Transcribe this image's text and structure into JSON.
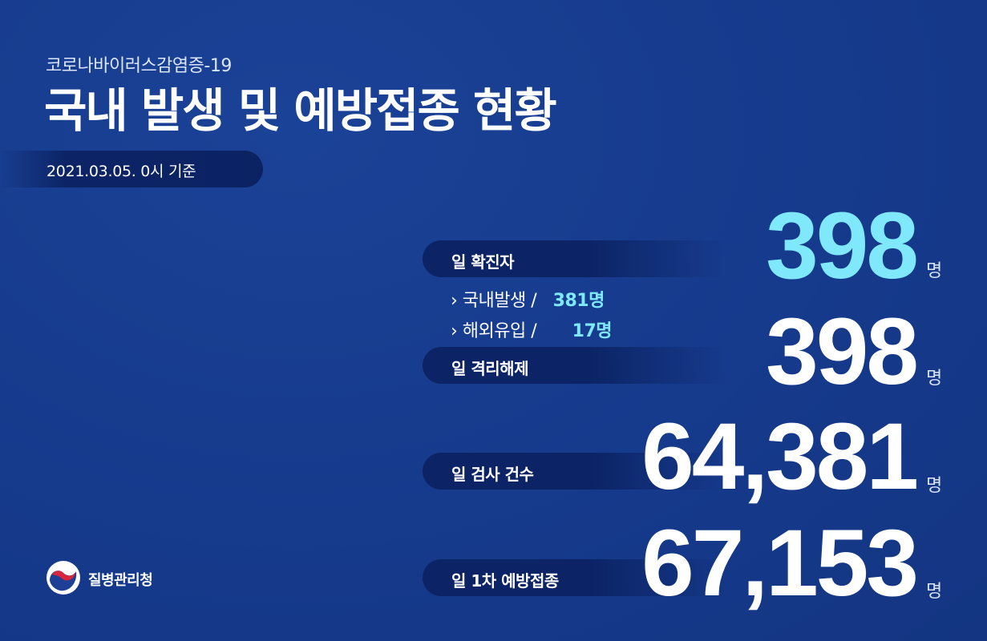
{
  "header": {
    "subtitle": "코로나바이러스감염증-19",
    "title": "국내 발생 및 예방접종 현황",
    "date": "2021.03.05. 0시 기준"
  },
  "stats": {
    "confirmed": {
      "label": "일 확진자",
      "value": "398",
      "unit": "명",
      "domestic_label": "› 국내발생  /",
      "domestic_value": "381명",
      "overseas_label": "› 해외유입  /",
      "overseas_value": "17명"
    },
    "released": {
      "label": "일 격리해제",
      "value": "398",
      "unit": "명"
    },
    "tests": {
      "label": "일 검사 건수",
      "value": "64,381",
      "unit": "명"
    },
    "vaccination": {
      "label": "일 1차 예방접종",
      "value": "67,153",
      "unit": "명"
    }
  },
  "footer": {
    "org_name": "질병관리청",
    "logo_icon": "taegeuk-icon"
  },
  "colors": {
    "background": "#163a8c",
    "pill": "#0c2466",
    "accent_cyan": "#7fe8fb"
  }
}
